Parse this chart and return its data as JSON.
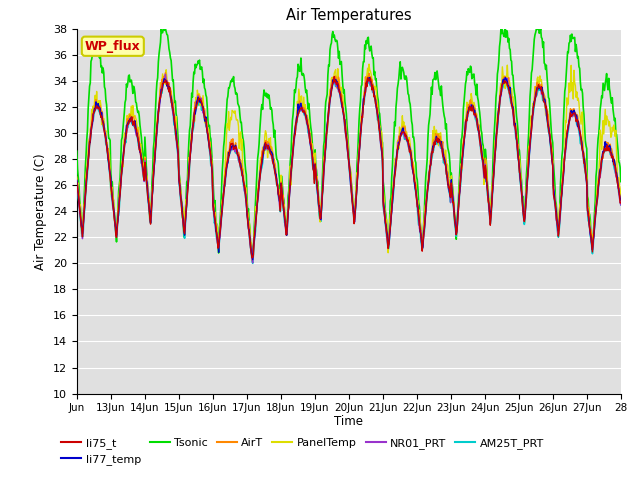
{
  "title": "Air Temperatures",
  "ylabel": "Air Temperature (C)",
  "xlabel": "Time",
  "ylim": [
    10,
    38
  ],
  "xlim_days": [
    0,
    16
  ],
  "xtick_labels": [
    "Jun",
    "13Jun",
    "14Jun",
    "15Jun",
    "16Jun",
    "17Jun",
    "18Jun",
    "19Jun",
    "20Jun",
    "21Jun",
    "22Jun",
    "23Jun",
    "24Jun",
    "25Jun",
    "26Jun",
    "27Jun",
    "28"
  ],
  "series": {
    "li75_t": {
      "color": "#cc0000",
      "lw": 1.0
    },
    "li77_temp": {
      "color": "#0000cc",
      "lw": 1.0
    },
    "Tsonic": {
      "color": "#00dd00",
      "lw": 1.2
    },
    "AirT": {
      "color": "#ff8800",
      "lw": 1.0
    },
    "PanelTemp": {
      "color": "#dddd00",
      "lw": 1.0
    },
    "NR01_PRT": {
      "color": "#9933cc",
      "lw": 1.0
    },
    "AM25T_PRT": {
      "color": "#00cccc",
      "lw": 1.2
    }
  },
  "annotation_text": "WP_flux",
  "annotation_color": "#cc0000",
  "annotation_bg": "#ffffaa",
  "annotation_border": "#cccc00",
  "background_color": "#e0e0e0",
  "grid_color": "#ffffff",
  "fig_bg": "#ffffff"
}
